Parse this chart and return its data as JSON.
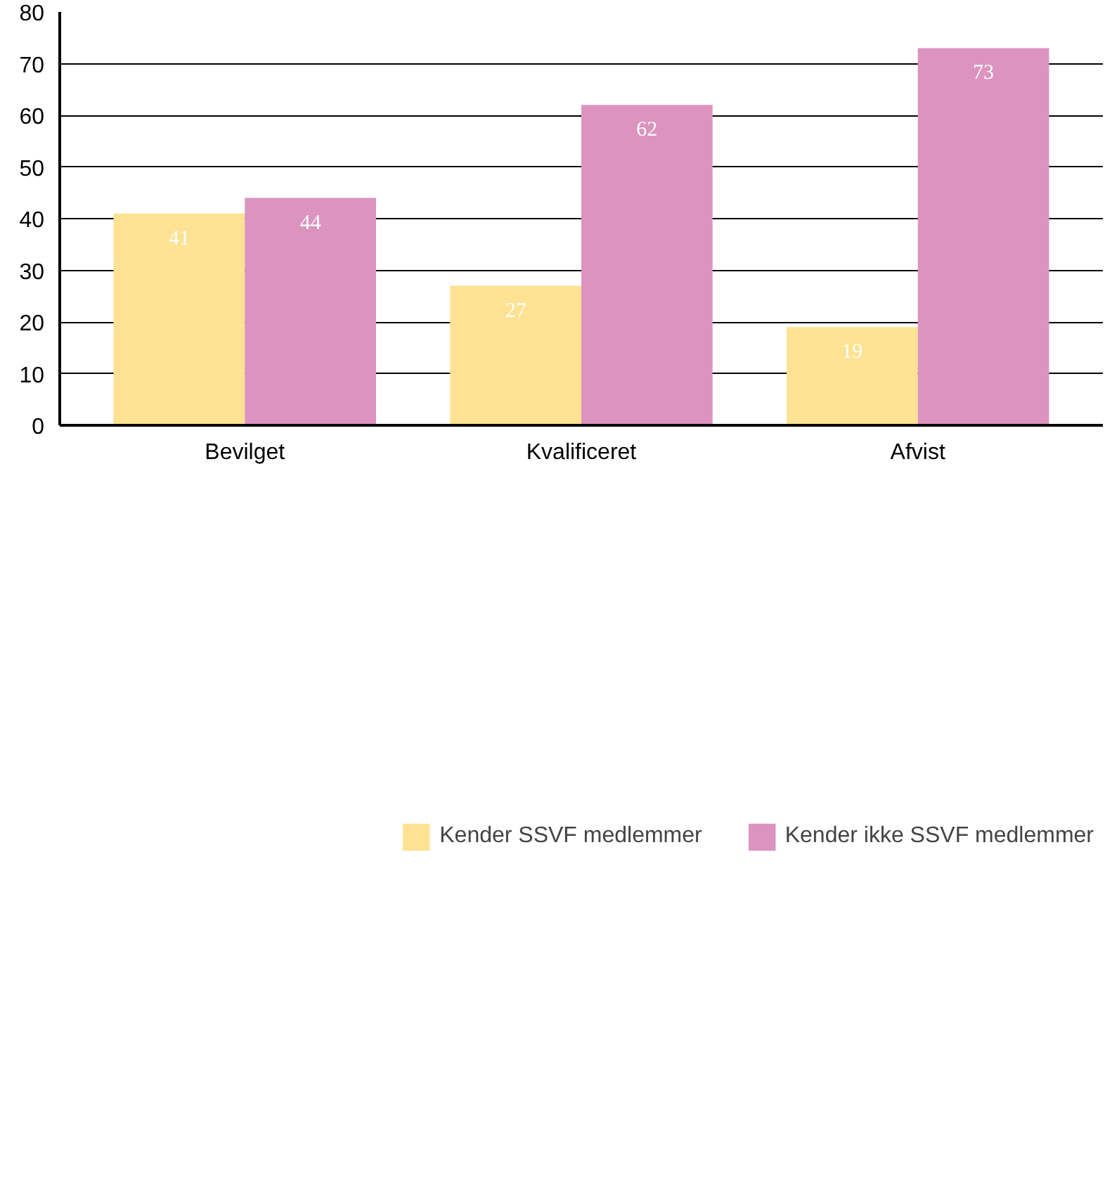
{
  "chart_data": {
    "type": "bar",
    "categories": [
      "Bevilget",
      "Kvalificeret",
      "Afvist"
    ],
    "series": [
      {
        "name": "Kender SSVF medlemmer",
        "color": "#fde293",
        "values": [
          41,
          27,
          19
        ]
      },
      {
        "name": "Kender ikke SSVF medlemmer",
        "color": "#dc93bf",
        "values": [
          44,
          62,
          73
        ]
      }
    ],
    "ylim": [
      0,
      80
    ],
    "yticks": [
      0,
      10,
      20,
      30,
      40,
      50,
      60,
      70,
      80
    ],
    "grid": "y",
    "legend": "bottom",
    "data_labels": true
  }
}
